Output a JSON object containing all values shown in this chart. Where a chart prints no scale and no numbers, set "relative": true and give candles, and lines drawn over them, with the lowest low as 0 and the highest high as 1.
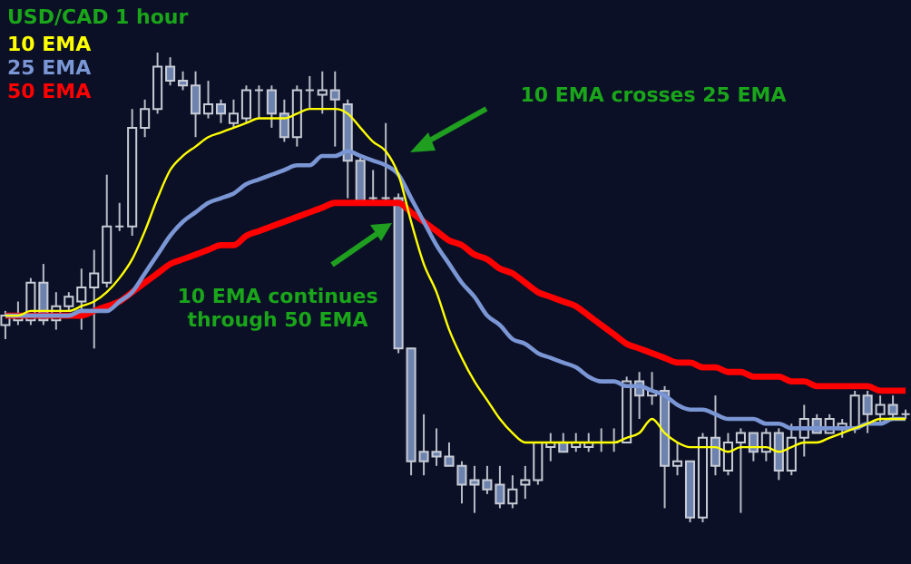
{
  "chart_data": {
    "type": "candlestick",
    "title": "USD/CAD 1 hour",
    "relative": true,
    "legend": "top left",
    "categories": [
      null,
      null,
      null,
      null,
      null,
      null,
      null,
      null,
      null,
      null,
      null,
      null,
      null,
      null,
      null,
      null,
      null,
      null,
      null,
      null,
      null,
      null,
      null,
      null,
      null,
      null,
      null,
      null,
      null,
      null,
      null,
      null,
      null,
      null,
      null,
      null,
      null,
      null,
      null,
      null,
      null,
      null,
      null,
      null,
      null,
      null,
      null,
      null,
      null,
      null,
      null,
      null,
      null,
      null,
      null,
      null,
      null,
      null,
      null,
      null,
      null,
      null,
      null,
      null,
      null,
      null,
      null,
      null,
      null,
      null,
      null,
      null
    ],
    "ohlc": [
      [
        0.42,
        0.45,
        0.39,
        0.44
      ],
      [
        0.43,
        0.47,
        0.42,
        0.44
      ],
      [
        0.43,
        0.52,
        0.42,
        0.51
      ],
      [
        0.51,
        0.55,
        0.42,
        0.43
      ],
      [
        0.43,
        0.49,
        0.41,
        0.46
      ],
      [
        0.46,
        0.49,
        0.45,
        0.48
      ],
      [
        0.47,
        0.54,
        0.41,
        0.5
      ],
      [
        0.5,
        0.58,
        0.37,
        0.53
      ],
      [
        0.51,
        0.74,
        0.5,
        0.63
      ],
      [
        0.63,
        0.68,
        0.62,
        0.63
      ],
      [
        0.63,
        0.88,
        0.61,
        0.84
      ],
      [
        0.84,
        0.9,
        0.82,
        0.88
      ],
      [
        0.88,
        1.0,
        0.87,
        0.97
      ],
      [
        0.97,
        0.99,
        0.93,
        0.94
      ],
      [
        0.94,
        0.96,
        0.92,
        0.93
      ],
      [
        0.93,
        0.96,
        0.82,
        0.87
      ],
      [
        0.87,
        0.94,
        0.86,
        0.89
      ],
      [
        0.89,
        0.9,
        0.85,
        0.87
      ],
      [
        0.85,
        0.9,
        0.84,
        0.87
      ],
      [
        0.86,
        0.93,
        0.85,
        0.92
      ],
      [
        0.92,
        0.93,
        0.86,
        0.92
      ],
      [
        0.92,
        0.93,
        0.84,
        0.87
      ],
      [
        0.87,
        0.9,
        0.81,
        0.82
      ],
      [
        0.82,
        0.93,
        0.8,
        0.92
      ],
      [
        0.92,
        0.95,
        0.88,
        0.92
      ],
      [
        0.91,
        0.96,
        0.87,
        0.92
      ],
      [
        0.92,
        0.96,
        0.8,
        0.9
      ],
      [
        0.89,
        0.9,
        0.69,
        0.77
      ],
      [
        0.77,
        0.78,
        0.68,
        0.68
      ],
      [
        0.69,
        0.75,
        0.68,
        0.69
      ],
      [
        0.69,
        0.85,
        0.68,
        0.69
      ],
      [
        0.69,
        0.7,
        0.36,
        0.37
      ],
      [
        0.37,
        0.37,
        0.1,
        0.13
      ],
      [
        0.15,
        0.23,
        0.1,
        0.13
      ],
      [
        0.15,
        0.2,
        0.12,
        0.14
      ],
      [
        0.14,
        0.17,
        0.12,
        0.12
      ],
      [
        0.12,
        0.13,
        0.04,
        0.08
      ],
      [
        0.09,
        0.12,
        0.02,
        0.08
      ],
      [
        0.09,
        0.12,
        0.06,
        0.07
      ],
      [
        0.08,
        0.12,
        0.03,
        0.04
      ],
      [
        0.04,
        0.1,
        0.03,
        0.07
      ],
      [
        0.08,
        0.12,
        0.05,
        0.09
      ],
      [
        0.09,
        0.17,
        0.08,
        0.17
      ],
      [
        0.16,
        0.19,
        0.13,
        0.17
      ],
      [
        0.17,
        0.19,
        0.15,
        0.15
      ],
      [
        0.16,
        0.19,
        0.15,
        0.17
      ],
      [
        0.16,
        0.19,
        0.15,
        0.17
      ],
      [
        0.17,
        0.2,
        0.15,
        0.17
      ],
      [
        0.17,
        0.2,
        0.15,
        0.17
      ],
      [
        0.17,
        0.31,
        0.17,
        0.3
      ],
      [
        0.3,
        0.32,
        0.22,
        0.27
      ],
      [
        0.27,
        0.32,
        0.25,
        0.28
      ],
      [
        0.28,
        0.29,
        0.03,
        0.12
      ],
      [
        0.12,
        0.17,
        0.1,
        0.13
      ],
      [
        0.13,
        0.13,
        0.0,
        0.01
      ],
      [
        0.01,
        0.19,
        0.0,
        0.18
      ],
      [
        0.18,
        0.27,
        0.1,
        0.12
      ],
      [
        0.11,
        0.19,
        0.1,
        0.17
      ],
      [
        0.17,
        0.2,
        0.02,
        0.19
      ],
      [
        0.19,
        0.19,
        0.13,
        0.15
      ],
      [
        0.15,
        0.2,
        0.13,
        0.19
      ],
      [
        0.19,
        0.2,
        0.09,
        0.11
      ],
      [
        0.11,
        0.21,
        0.1,
        0.18
      ],
      [
        0.18,
        0.25,
        0.14,
        0.22
      ],
      [
        0.22,
        0.23,
        0.19,
        0.19
      ],
      [
        0.19,
        0.23,
        0.19,
        0.22
      ],
      [
        0.2,
        0.22,
        0.18,
        0.21
      ],
      [
        0.2,
        0.28,
        0.19,
        0.27
      ],
      [
        0.27,
        0.28,
        0.19,
        0.23
      ],
      [
        0.23,
        0.27,
        0.21,
        0.25
      ],
      [
        0.25,
        0.27,
        0.22,
        0.23
      ],
      [
        0.23,
        0.24,
        0.22,
        0.23
      ]
    ],
    "series": [
      {
        "name": "10 EMA",
        "type": "line",
        "color": "#ffff00",
        "values": [
          0.44,
          0.44,
          0.45,
          0.45,
          0.45,
          0.45,
          0.46,
          0.47,
          0.49,
          0.52,
          0.56,
          0.62,
          0.69,
          0.75,
          0.78,
          0.8,
          0.82,
          0.83,
          0.84,
          0.85,
          0.86,
          0.86,
          0.86,
          0.87,
          0.88,
          0.88,
          0.88,
          0.87,
          0.84,
          0.81,
          0.79,
          0.74,
          0.64,
          0.55,
          0.49,
          0.41,
          0.35,
          0.3,
          0.26,
          0.22,
          0.19,
          0.17,
          0.17,
          0.17,
          0.17,
          0.17,
          0.17,
          0.17,
          0.17,
          0.18,
          0.19,
          0.22,
          0.19,
          0.17,
          0.16,
          0.16,
          0.16,
          0.15,
          0.16,
          0.16,
          0.16,
          0.15,
          0.16,
          0.17,
          0.17,
          0.18,
          0.19,
          0.2,
          0.21,
          0.22,
          0.22,
          0.22
        ]
      },
      {
        "name": "25 EMA",
        "type": "line",
        "color": "#7b96d4",
        "values": [
          0.44,
          0.44,
          0.44,
          0.44,
          0.44,
          0.44,
          0.45,
          0.45,
          0.45,
          0.47,
          0.49,
          0.53,
          0.57,
          0.61,
          0.64,
          0.66,
          0.68,
          0.69,
          0.7,
          0.72,
          0.73,
          0.74,
          0.75,
          0.76,
          0.76,
          0.78,
          0.78,
          0.79,
          0.78,
          0.77,
          0.76,
          0.74,
          0.69,
          0.64,
          0.59,
          0.55,
          0.51,
          0.48,
          0.44,
          0.42,
          0.39,
          0.38,
          0.36,
          0.35,
          0.34,
          0.33,
          0.31,
          0.3,
          0.3,
          0.29,
          0.29,
          0.28,
          0.27,
          0.25,
          0.24,
          0.24,
          0.23,
          0.22,
          0.22,
          0.22,
          0.21,
          0.21,
          0.2,
          0.2,
          0.2,
          0.2,
          0.2,
          0.2,
          0.21,
          0.21,
          0.22,
          0.22
        ]
      },
      {
        "name": "50 EMA",
        "type": "line",
        "color": "#ff0000",
        "values": [
          0.44,
          0.44,
          0.44,
          0.44,
          0.44,
          0.44,
          0.44,
          0.45,
          0.46,
          0.47,
          0.49,
          0.51,
          0.53,
          0.55,
          0.56,
          0.57,
          0.58,
          0.59,
          0.59,
          0.61,
          0.62,
          0.63,
          0.64,
          0.65,
          0.66,
          0.67,
          0.68,
          0.68,
          0.68,
          0.68,
          0.68,
          0.68,
          0.66,
          0.64,
          0.62,
          0.6,
          0.59,
          0.57,
          0.56,
          0.54,
          0.53,
          0.51,
          0.49,
          0.48,
          0.47,
          0.46,
          0.44,
          0.42,
          0.4,
          0.38,
          0.37,
          0.36,
          0.35,
          0.34,
          0.34,
          0.33,
          0.33,
          0.32,
          0.32,
          0.31,
          0.31,
          0.31,
          0.3,
          0.3,
          0.29,
          0.29,
          0.29,
          0.29,
          0.29,
          0.28,
          0.28,
          0.28
        ]
      }
    ],
    "annotations": [
      "10 EMA crosses 25 EMA",
      "10 EMA continues through 50 EMA"
    ]
  }
}
